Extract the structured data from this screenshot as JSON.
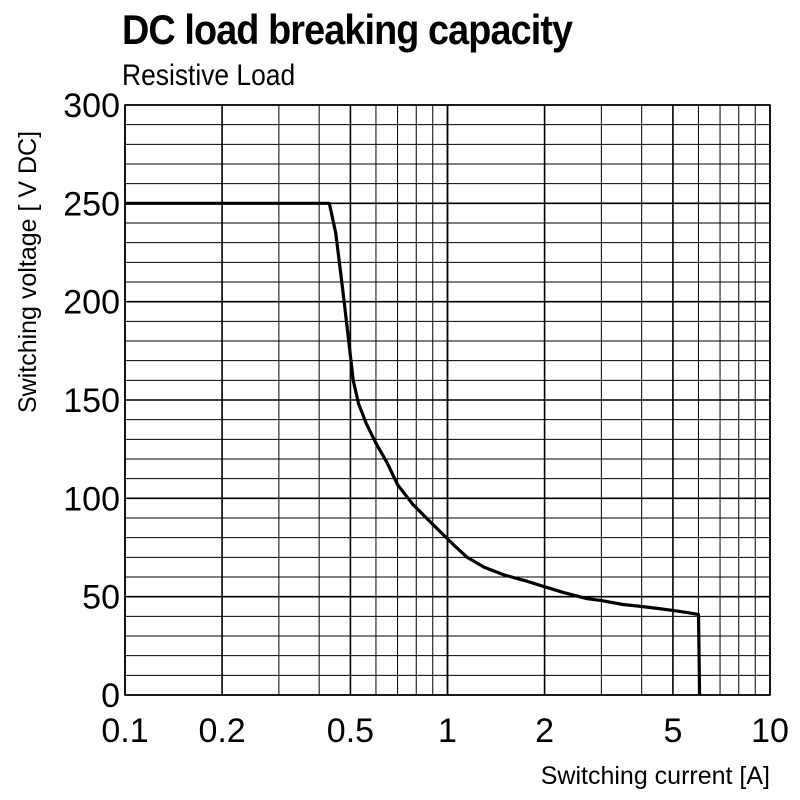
{
  "chart_data": {
    "type": "line",
    "title": "DC load breaking capacity",
    "subtitle": "Resistive Load",
    "xlabel": "Switching current [A]",
    "ylabel": "Switching voltage [ V DC]",
    "x_scale": "log",
    "xlim": [
      0.1,
      10
    ],
    "ylim": [
      0,
      300
    ],
    "grid": true,
    "x_ticks": [
      0.1,
      0.2,
      0.5,
      1,
      2,
      5,
      10
    ],
    "x_tick_labels": [
      "0.1",
      "0.2",
      "0.5",
      "1",
      "2",
      "5",
      "10"
    ],
    "y_ticks": [
      0,
      50,
      100,
      150,
      200,
      250,
      300
    ],
    "y_tick_labels": [
      "0",
      "50",
      "100",
      "150",
      "200",
      "250",
      "300"
    ],
    "series": [
      {
        "x": [
          0.1,
          0.43,
          0.45,
          0.47,
          0.49,
          0.51,
          0.53,
          0.56,
          0.6,
          0.65,
          0.7,
          0.78,
          0.86,
          0.95,
          1.05,
          1.15,
          1.3,
          1.5,
          1.75,
          2.0,
          2.3,
          2.7,
          3.0,
          3.5,
          4.0,
          4.5,
          5.0,
          5.5,
          6.0,
          6.05
        ],
        "y": [
          250,
          250,
          235,
          210,
          185,
          160,
          148,
          138,
          128,
          118,
          107,
          97,
          90,
          83,
          76,
          70,
          65,
          61,
          58,
          55,
          52,
          49,
          48,
          46,
          45,
          44,
          43,
          42,
          41,
          0
        ]
      }
    ]
  }
}
